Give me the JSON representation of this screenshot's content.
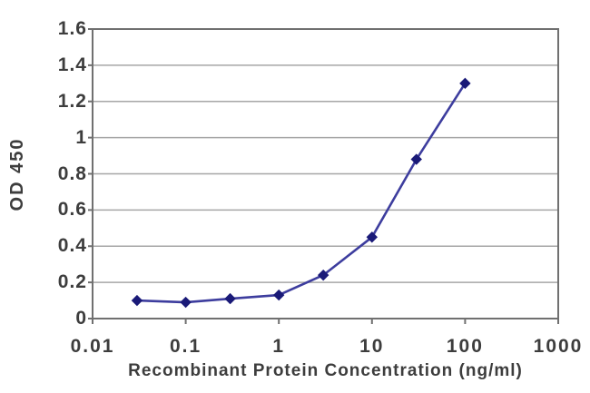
{
  "chart_data": {
    "type": "line",
    "title": "",
    "xlabel": "Recombinant Protein Concentration (ng/ml)",
    "ylabel": "OD 450",
    "x_scale": "log",
    "xlim": [
      0.01,
      1000
    ],
    "ylim": [
      0,
      1.6
    ],
    "x_tick_values": [
      0.01,
      0.1,
      1,
      10,
      100,
      1000
    ],
    "x_tick_labels": [
      "0.01",
      "0.1",
      "1",
      "10",
      "100",
      "1000"
    ],
    "y_tick_values": [
      0,
      0.2,
      0.4,
      0.6,
      0.8,
      1,
      1.2,
      1.4,
      1.6
    ],
    "y_tick_labels": [
      "0",
      "0.2",
      "0.4",
      "0.6",
      "0.8",
      "1",
      "1.2",
      "1.4",
      "1.6"
    ],
    "grid": "horizontal",
    "legend": "none",
    "series": [
      {
        "name": "OD 450",
        "marker": "diamond",
        "x": [
          0.03,
          0.1,
          0.3,
          1,
          3,
          10,
          30,
          100
        ],
        "y": [
          0.1,
          0.09,
          0.11,
          0.13,
          0.24,
          0.45,
          0.88,
          1.3
        ]
      }
    ],
    "colors": {
      "line": "#3d3d9e",
      "marker": "#1a1a78",
      "grid": "#a6a6a6",
      "border": "#707070",
      "text": "#3d3d3d",
      "background": "#ffffff"
    }
  }
}
